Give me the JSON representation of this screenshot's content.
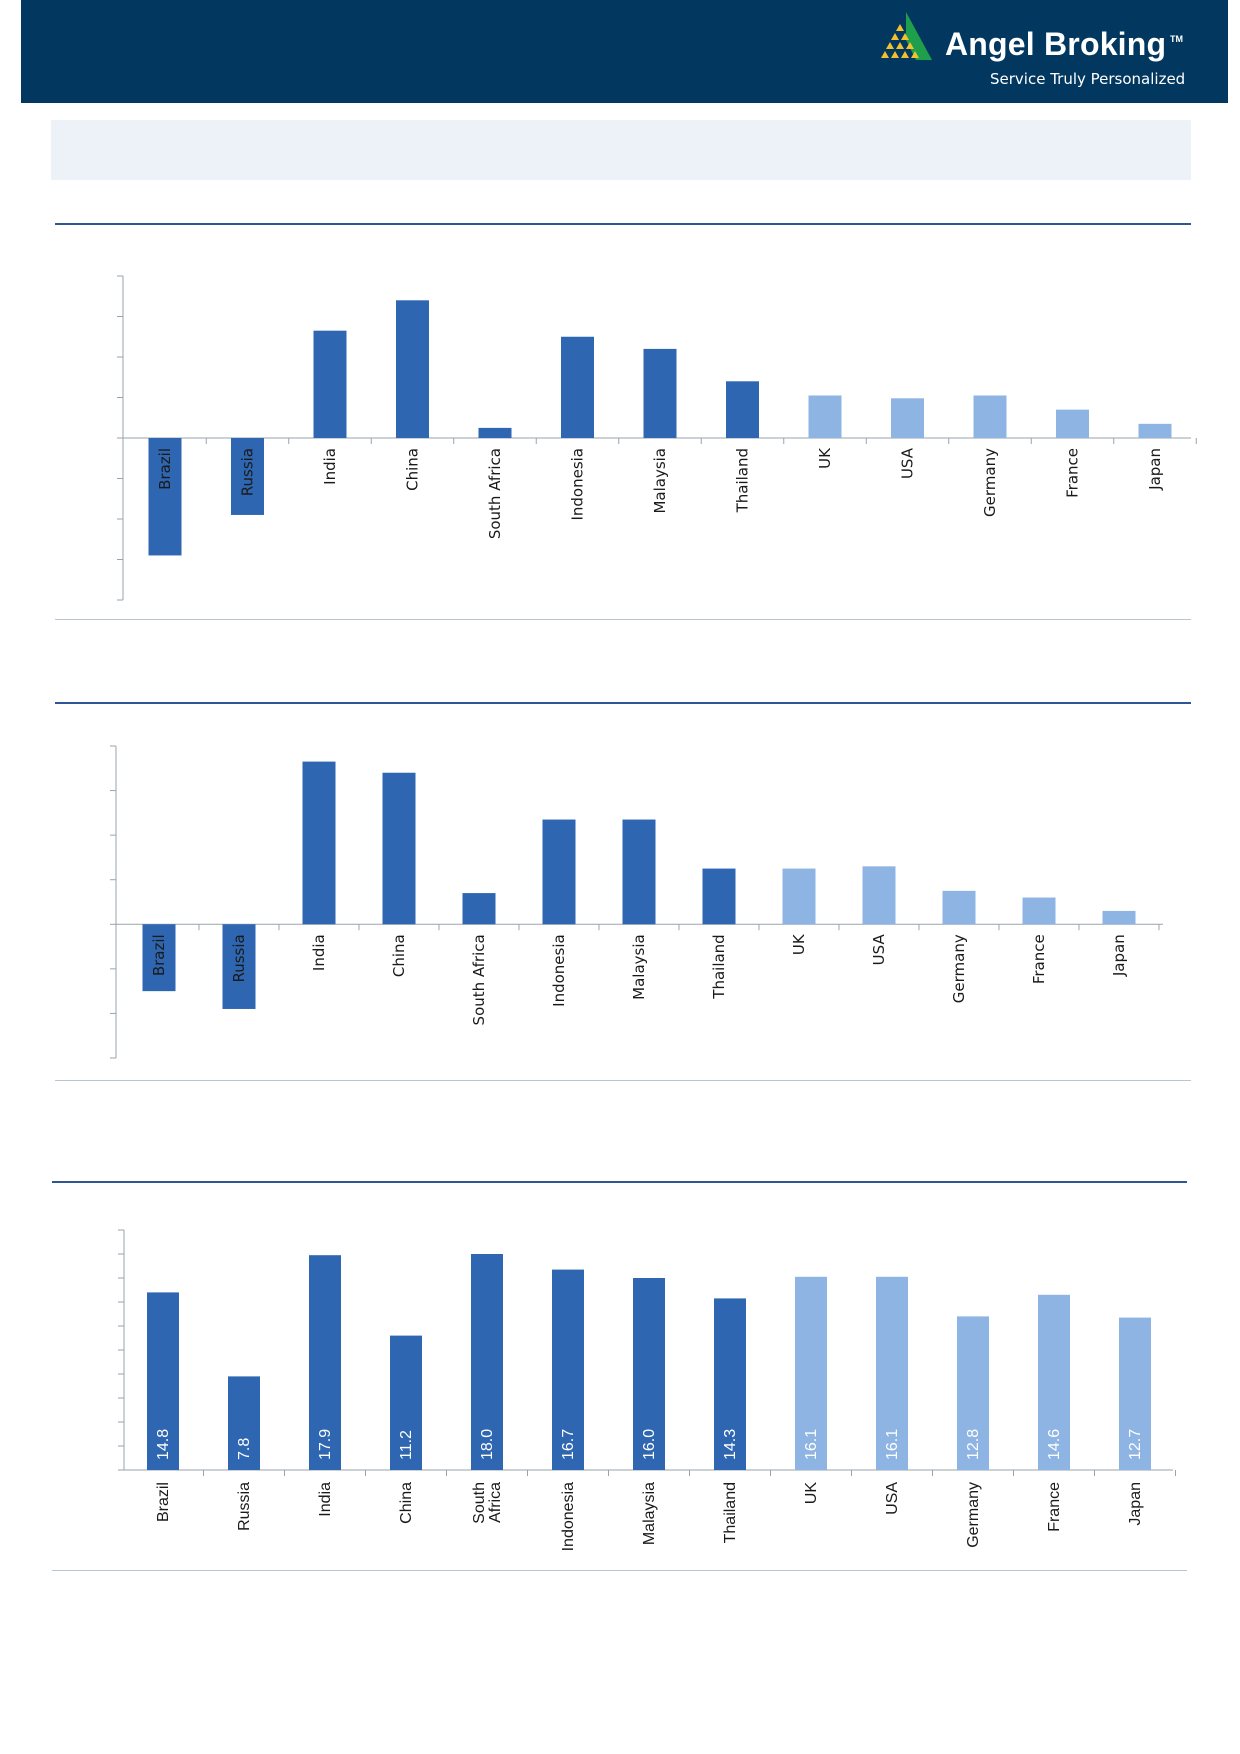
{
  "header": {
    "brand": "Angel Broking",
    "trademark": "TM",
    "tagline": "Service Truly Personalized"
  },
  "colors": {
    "header_bg": "#02385f",
    "emerging": "#2e66b1",
    "developed": "#8eb4e3",
    "rule": "#2f5597",
    "logo_gold": "#f3c12b",
    "logo_green": "#1f9e4b"
  },
  "chart_data": [
    {
      "type": "bar",
      "categories": [
        "Brazil",
        "Russia",
        "India",
        "China",
        "South Africa",
        "Indonesia",
        "Malaysia",
        "Thailand",
        "UK",
        "USA",
        "Germany",
        "France",
        "Japan"
      ],
      "values": [
        -2.9,
        -1.9,
        2.65,
        3.4,
        0.25,
        2.5,
        2.2,
        1.4,
        1.05,
        0.98,
        1.05,
        0.7,
        0.35
      ],
      "ylim": [
        -4,
        4
      ],
      "grid": false,
      "label_mode": "inside-negative"
    },
    {
      "type": "bar",
      "categories": [
        "Brazil",
        "Russia",
        "India",
        "China",
        "South Africa",
        "Indonesia",
        "Malaysia",
        "Thailand",
        "UK",
        "USA",
        "Germany",
        "France",
        "Japan"
      ],
      "values": [
        -1.5,
        -1.9,
        3.65,
        3.4,
        0.7,
        2.35,
        2.35,
        1.25,
        1.25,
        1.3,
        0.75,
        0.6,
        0.3
      ],
      "ylim": [
        -3,
        4
      ],
      "grid": false,
      "label_mode": "inside-negative"
    },
    {
      "type": "bar",
      "categories": [
        "Brazil",
        "Russia",
        "India",
        "China",
        "South Africa",
        "Indonesia",
        "Malaysia",
        "Thailand",
        "UK",
        "USA",
        "Germany",
        "France",
        "Japan"
      ],
      "values": [
        14.8,
        7.8,
        17.9,
        11.2,
        18.0,
        16.7,
        16.0,
        14.3,
        16.1,
        16.1,
        12.8,
        14.6,
        12.7
      ],
      "value_labels": [
        "14.8",
        "7.8",
        "17.9",
        "11.2",
        "18.0",
        "16.7",
        "16.0",
        "14.3",
        "16.1",
        "16.1",
        "12.8",
        "14.6",
        "12.7"
      ],
      "ylim": [
        0,
        20
      ],
      "grid": false,
      "label_mode": "below-axis"
    }
  ]
}
